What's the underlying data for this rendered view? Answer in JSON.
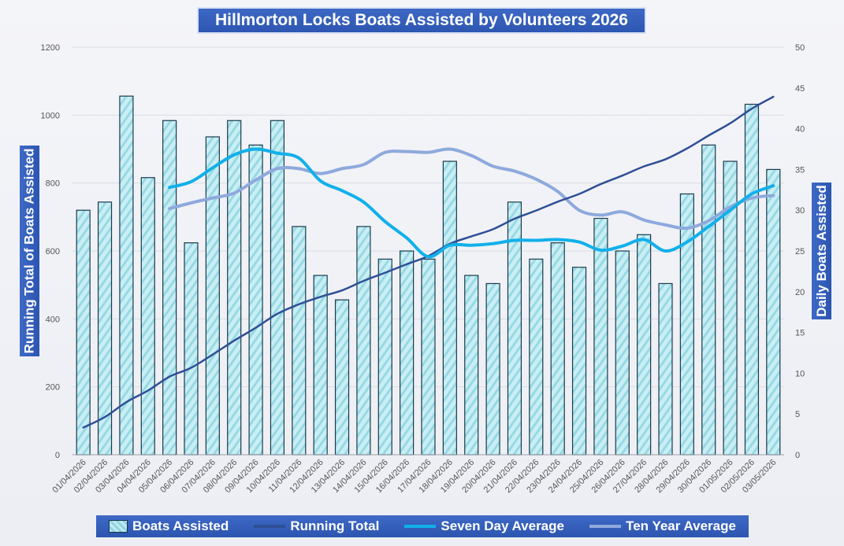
{
  "colors": {
    "bar_fill_light": "#c9eef3",
    "bar_fill_dark": "#86cfdd",
    "bar_stroke": "#1a3a4c",
    "running_total": "#2f4f96",
    "seven_day": "#11b0ea",
    "ten_year": "#8ea9dc",
    "title_bg": "#3560bd"
  },
  "chart_data": {
    "type": "bar",
    "title": "Hillmorton Locks Boats Assisted by Volunteers 2026",
    "ylabel_left": "Running Total of Boats Assisted",
    "ylabel_right": "Daily Boats Assisted",
    "ylim_left": [
      0,
      1200
    ],
    "ylim_right": [
      0,
      50
    ],
    "yticks_left": [
      "0",
      "200",
      "400",
      "600",
      "800",
      "1000",
      "1200"
    ],
    "yticks_right": [
      "0",
      "5",
      "10",
      "15",
      "20",
      "25",
      "30",
      "35",
      "40",
      "45",
      "50"
    ],
    "grid": true,
    "legend_position": "bottom",
    "categories": [
      "01/04/2026",
      "02/04/2026",
      "03/04/2026",
      "04/04/2026",
      "05/04/2026",
      "06/04/2026",
      "07/04/2026",
      "08/04/2026",
      "09/04/2026",
      "10/04/2026",
      "11/04/2026",
      "12/04/2026",
      "13/04/2026",
      "14/04/2026",
      "15/04/2026",
      "16/04/2026",
      "17/04/2026",
      "18/04/2026",
      "19/04/2026",
      "20/04/2026",
      "21/04/2026",
      "22/04/2026",
      "23/04/2026",
      "24/04/2026",
      "25/04/2026",
      "26/04/2026",
      "27/04/2026",
      "28/04/2026",
      "29/04/2026",
      "30/04/2026",
      "01/05/2026",
      "02/05/2026",
      "03/05/2026"
    ],
    "series": [
      {
        "name": "Boats Assisted",
        "type": "bar",
        "axis": "right",
        "values": [
          30,
          31,
          44,
          34,
          41,
          26,
          39,
          41,
          38,
          41,
          28,
          22,
          19,
          28,
          24,
          25,
          24,
          36,
          22,
          21,
          31,
          24,
          26,
          23,
          29,
          25,
          27,
          21,
          32,
          38,
          36,
          43,
          35
        ]
      },
      {
        "name": "Running Total",
        "type": "line",
        "axis": "left",
        "values": [
          80,
          111,
          155,
          189,
          230,
          256,
          295,
          336,
          374,
          415,
          443,
          465,
          484,
          512,
          536,
          561,
          585,
          621,
          643,
          664,
          695,
          719,
          745,
          768,
          797,
          822,
          849,
          870,
          902,
          940,
          976,
          1019,
          1054
        ]
      },
      {
        "name": "Seven Day Average",
        "type": "line",
        "axis": "right",
        "values": [
          null,
          null,
          null,
          null,
          32.8,
          33.5,
          35.2,
          36.8,
          37.5,
          37.0,
          36.4,
          33.6,
          32.4,
          31.0,
          28.6,
          26.6,
          24.3,
          25.7,
          25.7,
          25.9,
          26.3,
          26.3,
          26.4,
          26.1,
          25.1,
          25.6,
          26.4,
          25.0,
          26.1,
          28.0,
          30.0,
          32.0,
          33.0
        ]
      },
      {
        "name": "Ten Year Average",
        "type": "line",
        "axis": "right",
        "values": [
          null,
          null,
          null,
          null,
          30.2,
          30.9,
          31.5,
          32.1,
          33.7,
          35.1,
          35.1,
          34.5,
          35.1,
          35.6,
          37.1,
          37.2,
          37.1,
          37.5,
          36.7,
          35.4,
          34.8,
          33.8,
          32.3,
          30.0,
          29.4,
          29.8,
          28.8,
          28.2,
          27.8,
          28.7,
          30.4,
          31.5,
          31.8
        ]
      }
    ]
  },
  "legend": {
    "bar_label": "Boats Assisted",
    "running_total_label": "Running Total",
    "seven_day_label": "Seven Day Average",
    "ten_year_label": "Ten Year Average"
  }
}
